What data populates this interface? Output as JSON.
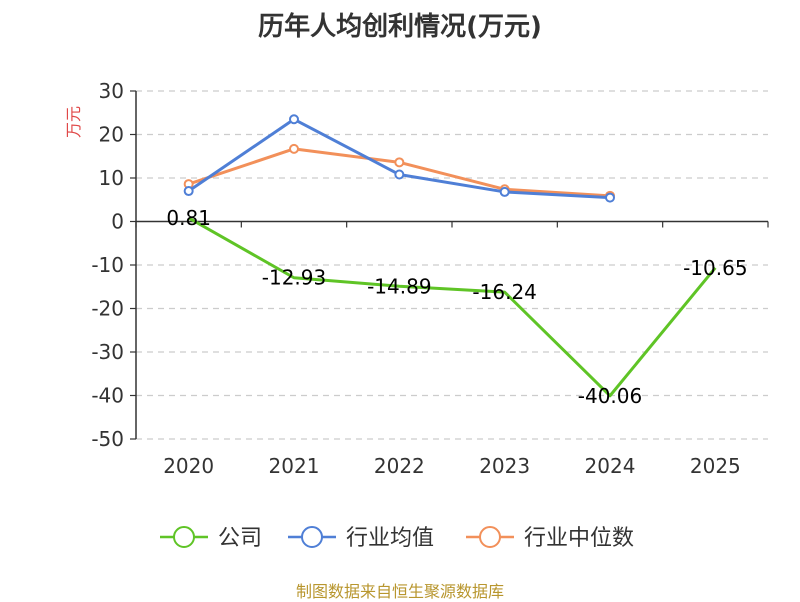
{
  "chart_data": {
    "type": "line",
    "title": "历年人均创利情况(万元)",
    "ylabel": "万元",
    "ylim": [
      -50,
      30
    ],
    "yticks": [
      30,
      20,
      10,
      0,
      -10,
      -20,
      -30,
      -40,
      -50
    ],
    "ytick_labels": [
      "30",
      "20",
      "10",
      "0",
      "-10",
      "-20",
      "-30",
      "-40",
      "-50"
    ],
    "categories": [
      "2020",
      "2021",
      "2022",
      "2023",
      "2024",
      "2025"
    ],
    "grid": true,
    "legend_position": "bottom",
    "series": [
      {
        "name": "公司",
        "color": "#5fc426",
        "values": [
          0.81,
          -12.93,
          -14.89,
          -16.24,
          -40.06,
          -10.65
        ],
        "labels": [
          "0.81",
          "-12.93",
          "-14.89",
          "-16.24",
          "-40.06",
          "-10.65"
        ]
      },
      {
        "name": "行业均值",
        "color": "#4f7fd6",
        "values": [
          7.0,
          23.5,
          10.8,
          6.8,
          5.5,
          null
        ]
      },
      {
        "name": "行业中位数",
        "color": "#f2905a",
        "values": [
          8.6,
          16.7,
          13.6,
          7.4,
          5.9,
          null
        ]
      }
    ]
  },
  "source_text": "制图数据来自恒生聚源数据库"
}
